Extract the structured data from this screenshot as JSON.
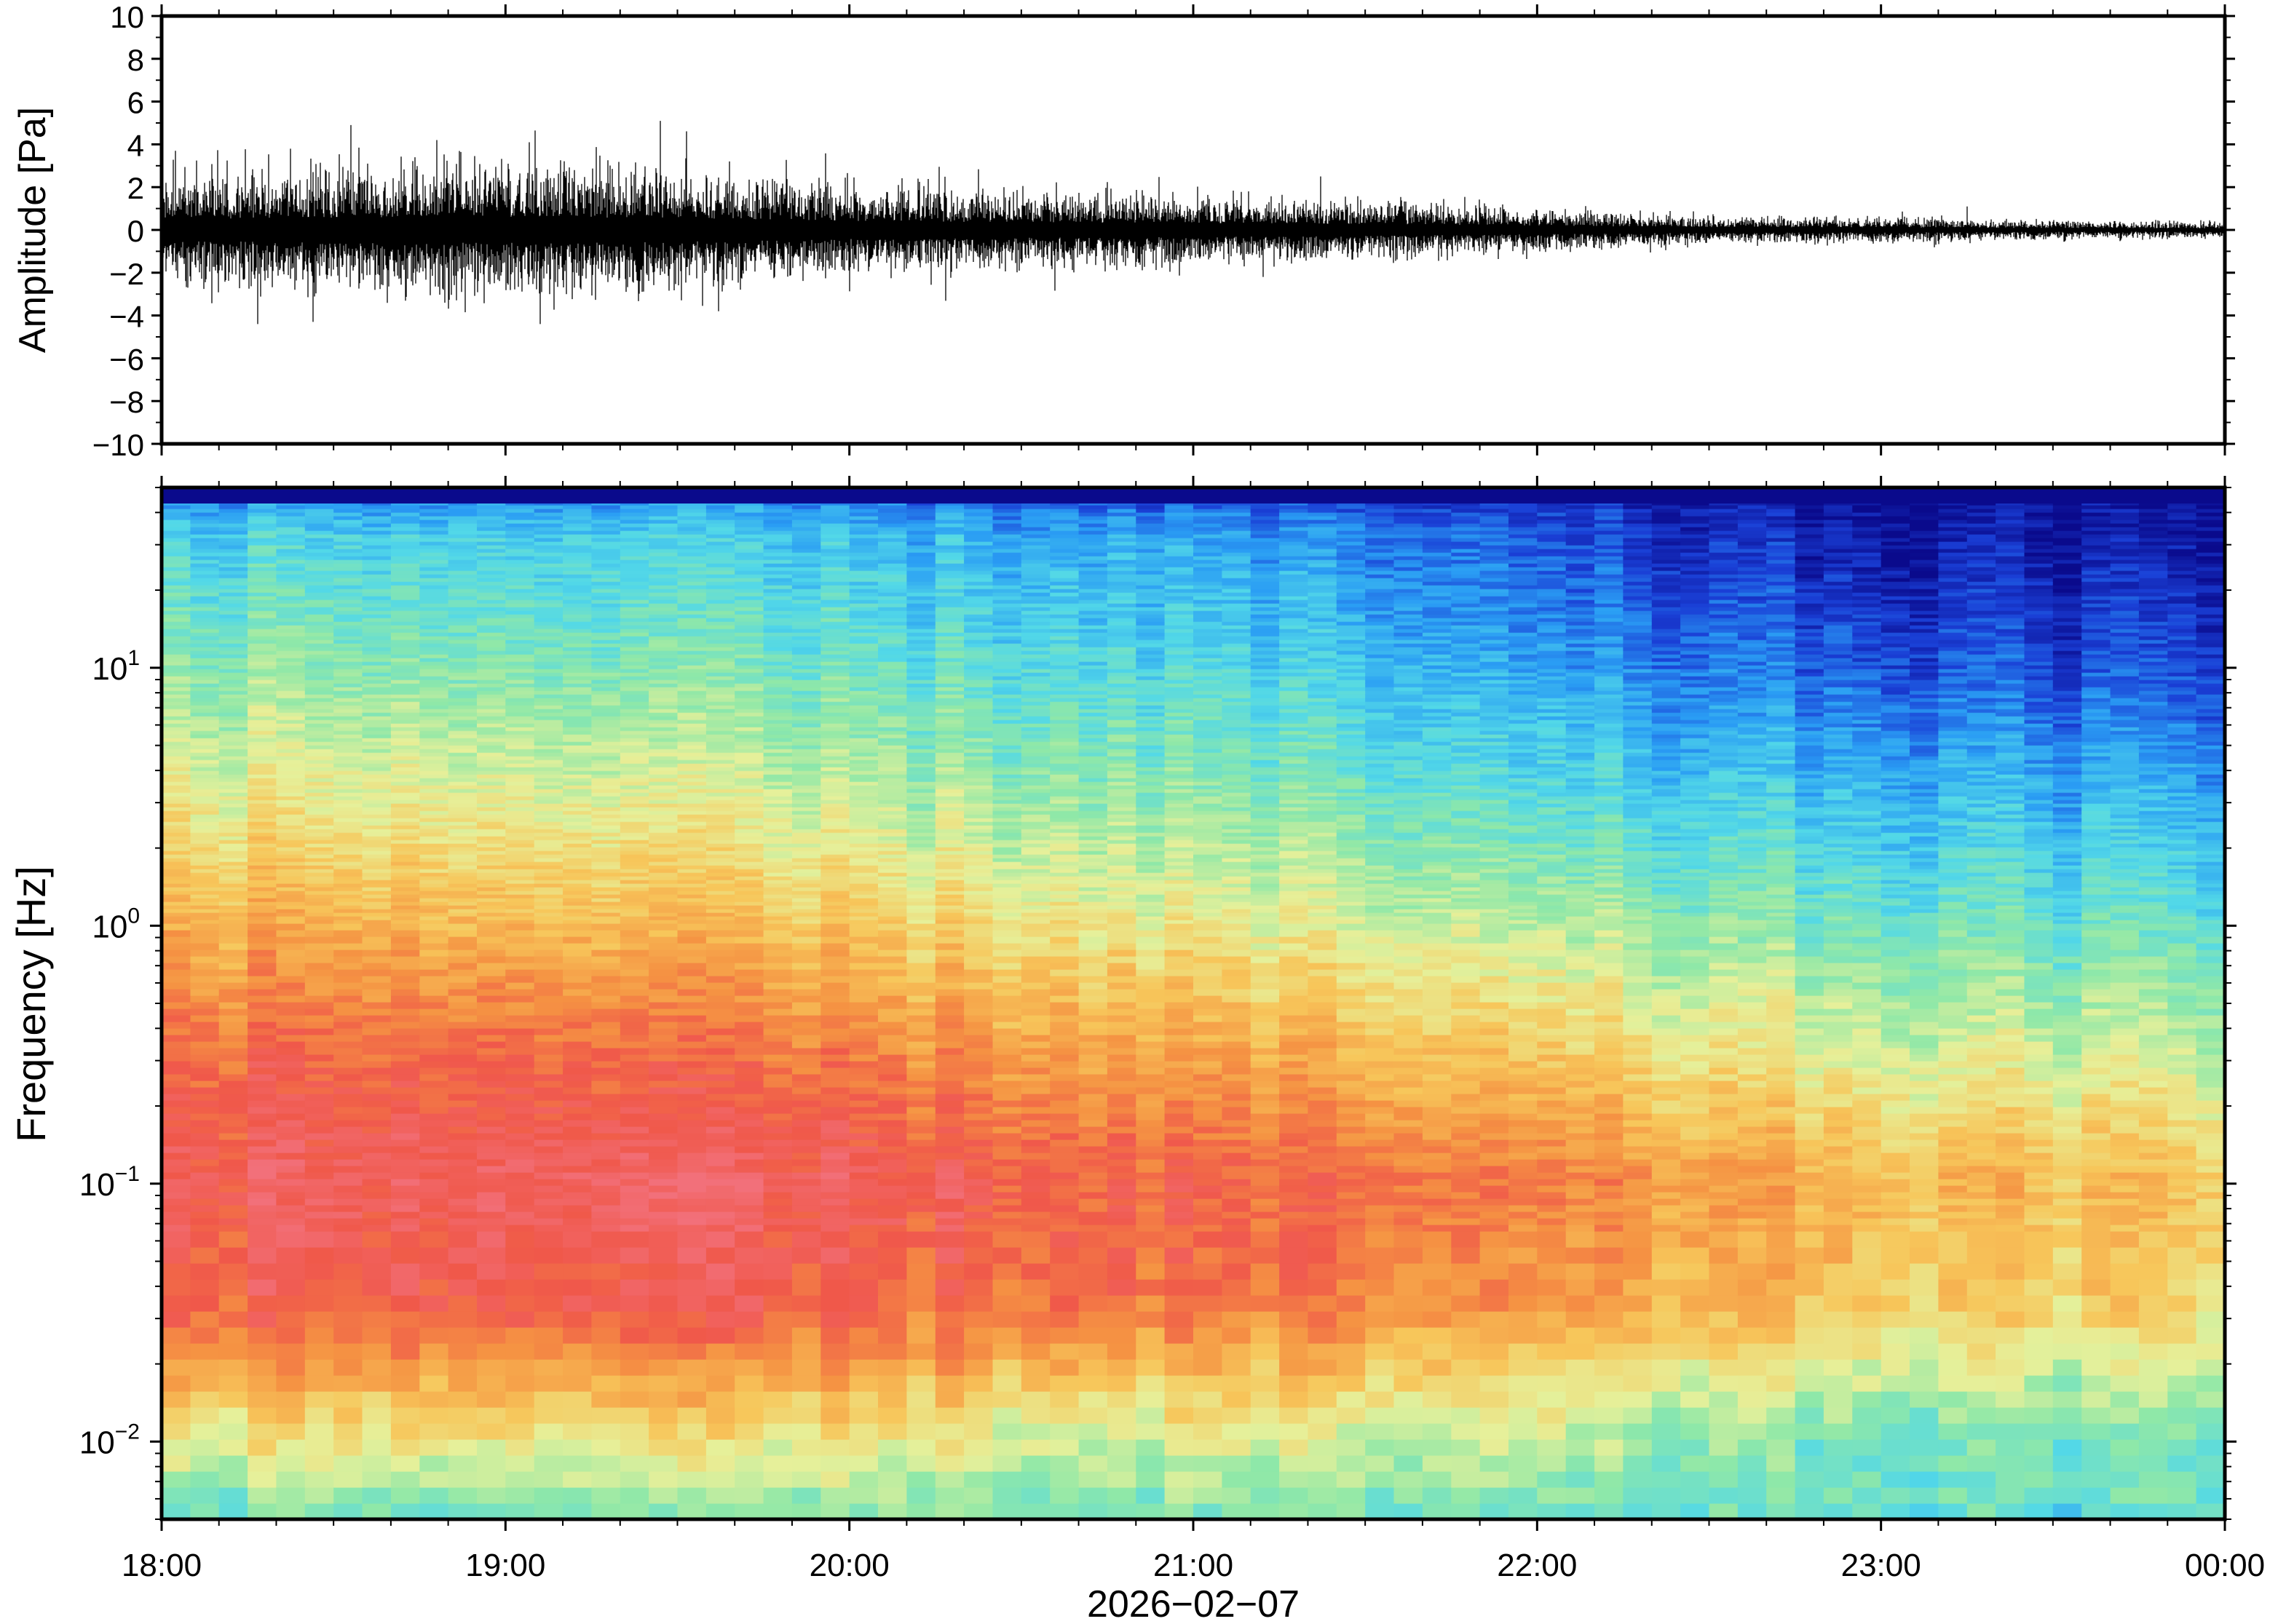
{
  "chart_data": [
    {
      "type": "line",
      "panel": "waveform",
      "title": "",
      "xlabel": "",
      "ylabel": "Amplitude [Pa]",
      "ylim": [
        -10,
        10
      ],
      "yticks": [
        "10",
        "8",
        "6",
        "4",
        "2",
        "0",
        "−2",
        "−4",
        "−6",
        "−8",
        "−10"
      ],
      "ytick_values": [
        10,
        8,
        6,
        4,
        2,
        0,
        -2,
        -4,
        -6,
        -8,
        -10
      ],
      "x_range_hours": [
        18,
        24
      ],
      "envelope_hours": [
        18.0,
        18.5,
        19.0,
        19.5,
        20.0,
        20.5,
        21.0,
        21.5,
        22.0,
        22.5,
        23.0,
        23.5,
        24.0
      ],
      "envelope_amplitude": [
        2.0,
        2.3,
        2.4,
        2.2,
        1.7,
        1.4,
        1.3,
        1.1,
        0.8,
        0.5,
        0.45,
        0.35,
        0.3
      ],
      "peak_events": [
        {
          "hour": 18.04,
          "value": 3.7
        },
        {
          "hour": 18.28,
          "value": -4.4
        },
        {
          "hour": 18.44,
          "value": -4.3
        },
        {
          "hour": 18.55,
          "value": 4.9
        },
        {
          "hour": 18.8,
          "value": 4.2
        },
        {
          "hour": 19.07,
          "value": 4.1
        },
        {
          "hour": 19.1,
          "value": -4.4
        },
        {
          "hour": 19.45,
          "value": 5.1
        },
        {
          "hour": 19.62,
          "value": -3.8
        },
        {
          "hour": 20.45,
          "value": 2.0
        },
        {
          "hour": 21.37,
          "value": 2.5
        },
        {
          "hour": 23.25,
          "value": 1.1
        }
      ]
    },
    {
      "type": "heatmap",
      "panel": "spectrogram",
      "title": "",
      "xlabel": "2026−02−07",
      "ylabel": "Frequency [Hz]",
      "yscale": "log",
      "ylim": [
        0.005,
        50
      ],
      "yticks": [
        {
          "value": 10,
          "base": "10",
          "exp": "1"
        },
        {
          "value": 1,
          "base": "10",
          "exp": "0"
        },
        {
          "value": 0.1,
          "base": "10",
          "exp": "−1"
        },
        {
          "value": 0.01,
          "base": "10",
          "exp": "−2"
        }
      ],
      "x_range_hours": [
        18,
        24
      ],
      "xticks": [
        {
          "hour": 18,
          "label": "18:00"
        },
        {
          "hour": 19,
          "label": "19:00"
        },
        {
          "hour": 20,
          "label": "20:00"
        },
        {
          "hour": 21,
          "label": "21:00"
        },
        {
          "hour": 22,
          "label": "22:00"
        },
        {
          "hour": 23,
          "label": "23:00"
        },
        {
          "hour": 24,
          "label": "00:00"
        }
      ],
      "colormap": [
        "#0a0a8c",
        "#1a3fd6",
        "#2a9df4",
        "#52d8e8",
        "#8fe8a8",
        "#e6f09a",
        "#f7c65a",
        "#f59343",
        "#f0584a",
        "#f2707a"
      ],
      "profile_hours": [
        18,
        19,
        20,
        21,
        22,
        23,
        24
      ],
      "profile_log10_freq": [
        -2.3,
        -2.0,
        -1.5,
        -1.0,
        -0.5,
        0.0,
        0.5,
        1.0,
        1.5,
        1.7
      ],
      "profile_levels": [
        [
          0.42,
          0.42,
          0.44,
          0.42,
          0.4,
          0.38,
          0.36
        ],
        [
          0.6,
          0.6,
          0.58,
          0.55,
          0.5,
          0.42,
          0.4
        ],
        [
          0.88,
          0.9,
          0.87,
          0.83,
          0.75,
          0.66,
          0.62
        ],
        [
          0.93,
          0.95,
          0.92,
          0.87,
          0.8,
          0.7,
          0.66
        ],
        [
          0.86,
          0.86,
          0.8,
          0.73,
          0.64,
          0.54,
          0.5
        ],
        [
          0.72,
          0.7,
          0.64,
          0.57,
          0.48,
          0.4,
          0.36
        ],
        [
          0.58,
          0.56,
          0.5,
          0.44,
          0.34,
          0.28,
          0.24
        ],
        [
          0.45,
          0.43,
          0.38,
          0.34,
          0.22,
          0.14,
          0.1
        ],
        [
          0.33,
          0.32,
          0.28,
          0.24,
          0.12,
          0.04,
          0.02
        ],
        [
          0.18,
          0.18,
          0.14,
          0.1,
          0.05,
          0.0,
          0.0
        ]
      ]
    }
  ]
}
